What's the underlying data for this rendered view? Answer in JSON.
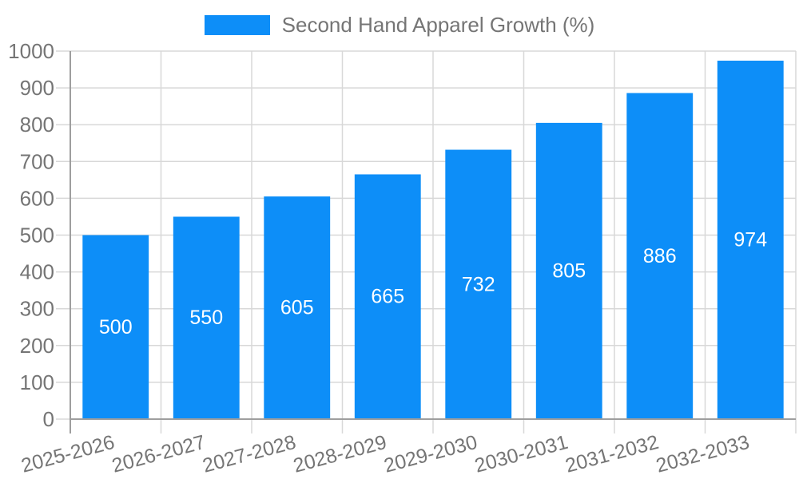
{
  "chart_data": {
    "type": "bar",
    "title": "Second Hand Apparel Growth (%)",
    "categories": [
      "2025-2026",
      "2026-2027",
      "2027-2028",
      "2028-2029",
      "2029-2030",
      "2030-2031",
      "2031-2032",
      "2032-2033"
    ],
    "values": [
      500,
      550,
      605,
      665,
      732,
      805,
      886,
      974
    ],
    "xlabel": "",
    "ylabel": "",
    "ylim": [
      0,
      1000
    ],
    "ytick_step": 100,
    "ytick_labels": [
      "0",
      "100",
      "200",
      "300",
      "400",
      "500",
      "600",
      "700",
      "800",
      "900",
      "1000"
    ],
    "grid": true,
    "legend_position": "top",
    "x_label_rotation_deg": -15,
    "bar_labels_inside": true,
    "colors": {
      "bar": "#0d8ef8",
      "bar_label": "#ffffff",
      "grid": "#d8d8d8",
      "axis": "#9e9e9e",
      "text": "#757575"
    }
  },
  "legend": {
    "label": "Second Hand Apparel Growth (%)"
  }
}
